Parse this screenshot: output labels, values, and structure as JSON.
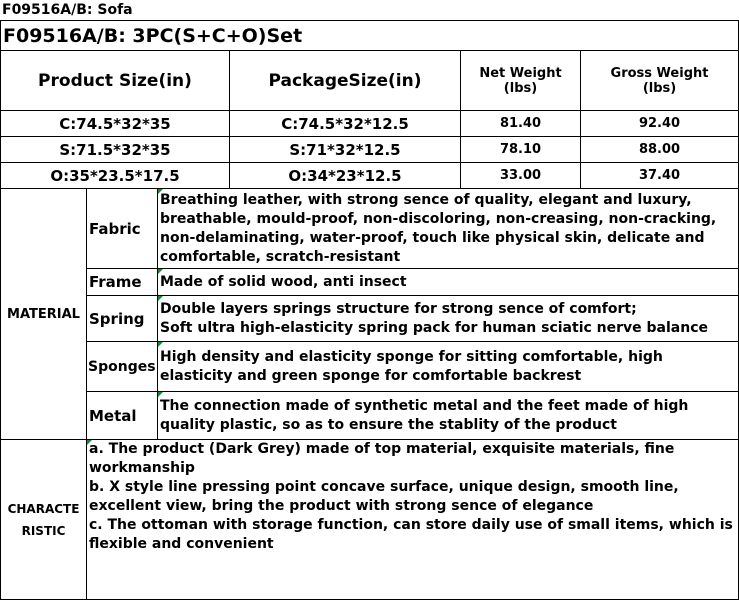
{
  "page_title": "F09516A/B: Sofa",
  "set_title": "F09516A/B: 3PC(S+C+O)Set",
  "headers": {
    "product_size": "Product Size(in)",
    "package_size": "PackageSize(in)",
    "net_weight": "Net Weight\n(lbs)",
    "gross_weight": "Gross Weight\n(lbs)"
  },
  "rows": [
    {
      "product": "C:74.5*32*35",
      "package": "C:74.5*32*12.5",
      "net": "81.40",
      "gross": "92.40"
    },
    {
      "product": "S:71.5*32*35",
      "package": "S:71*32*12.5",
      "net": "78.10",
      "gross": "88.00"
    },
    {
      "product": "O:35*23.5*17.5",
      "package": "O:34*23*12.5",
      "net": "33.00",
      "gross": "37.40"
    }
  ],
  "material": {
    "label": "MATERIAL",
    "items": [
      {
        "name": "Fabric",
        "text": "Breathing leather, with strong sence of quality, elegant and luxury, breathable, mould-proof, non-discoloring, non-creasing, non-cracking, non-delaminating, water-proof, touch like physical skin, delicate and comfortable, scratch-resistant"
      },
      {
        "name": "Frame",
        "text": "Made of solid wood, anti insect"
      },
      {
        "name": "Spring",
        "text": "Double layers springs structure for strong sence of comfort;\nSoft ultra high-elasticity spring pack for human sciatic nerve balance"
      },
      {
        "name": "Sponges",
        "text": "High density and elasticity sponge for sitting comfortable, high elasticity and green sponge for comfortable backrest"
      },
      {
        "name": "Metal",
        "text": "The connection made of synthetic metal and the feet made of high quality plastic, so as to ensure the stablity of  the product"
      }
    ]
  },
  "characteristic": {
    "label": "CHARACTE\nRISTIC",
    "text": "a. The product (Dark Grey) made of top material, exquisite materials, fine workmanship\nb. X style line pressing point concave surface, unique design, smooth line, excellent view, bring the product with strong sence of elegance\nc. The ottoman with storage function, can store daily use of small items, which is flexible and convenient"
  }
}
